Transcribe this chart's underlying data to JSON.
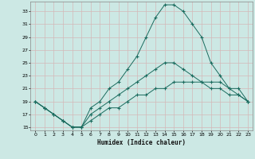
{
  "xlabel": "Humidex (Indice chaleur)",
  "bg_color": "#cce8e4",
  "grid_color": "#b8d8d4",
  "line_color": "#1a6b5e",
  "xlim": [
    -0.5,
    23.5
  ],
  "ylim": [
    14.5,
    34.5
  ],
  "yticks": [
    15,
    17,
    19,
    21,
    23,
    25,
    27,
    29,
    31,
    33
  ],
  "xticks": [
    0,
    1,
    2,
    3,
    4,
    5,
    6,
    7,
    8,
    9,
    10,
    11,
    12,
    13,
    14,
    15,
    16,
    17,
    18,
    19,
    20,
    21,
    22,
    23
  ],
  "series1_x": [
    0,
    1,
    2,
    3,
    4,
    5,
    6,
    7,
    8,
    9,
    10,
    11,
    12,
    13,
    14,
    15,
    16,
    17,
    18,
    19,
    20,
    21,
    22,
    23
  ],
  "series1_y": [
    19,
    18,
    17,
    16,
    15,
    15,
    18,
    19,
    21,
    22,
    24,
    26,
    29,
    32,
    34,
    34,
    33,
    31,
    29,
    25,
    23,
    21,
    20,
    19
  ],
  "series2_x": [
    0,
    1,
    2,
    3,
    4,
    5,
    6,
    7,
    8,
    9,
    10,
    11,
    12,
    13,
    14,
    15,
    16,
    17,
    18,
    19,
    20,
    21,
    22,
    23
  ],
  "series2_y": [
    19,
    18,
    17,
    16,
    15,
    15,
    17,
    18,
    19,
    20,
    21,
    22,
    23,
    24,
    25,
    25,
    24,
    23,
    22,
    21,
    21,
    20,
    20,
    19
  ],
  "series3_x": [
    0,
    1,
    2,
    3,
    4,
    5,
    6,
    7,
    8,
    9,
    10,
    11,
    12,
    13,
    14,
    15,
    16,
    17,
    18,
    19,
    20,
    21,
    22,
    23
  ],
  "series3_y": [
    19,
    18,
    17,
    16,
    15,
    15,
    16,
    17,
    18,
    18,
    19,
    20,
    20,
    21,
    21,
    22,
    22,
    22,
    22,
    22,
    22,
    21,
    21,
    19
  ]
}
